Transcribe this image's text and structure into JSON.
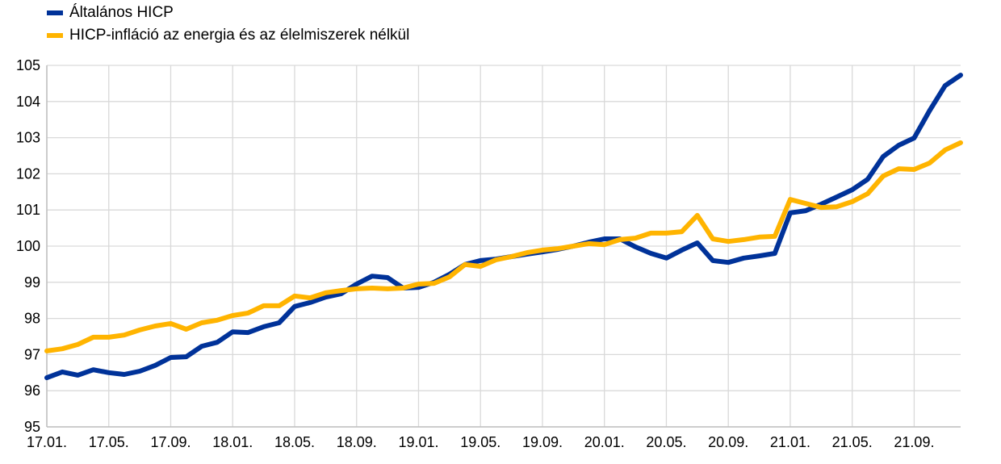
{
  "chart_data": {
    "type": "line",
    "title": "",
    "xlabel": "",
    "ylabel": "",
    "ylim": [
      95,
      105
    ],
    "yticks": [
      95,
      96,
      97,
      98,
      99,
      100,
      101,
      102,
      103,
      104,
      105
    ],
    "grid": true,
    "legend_position": "top-left",
    "x_tick_labels": [
      "17.01.",
      "17.05.",
      "17.09.",
      "18.01.",
      "18.05.",
      "18.09.",
      "19.01.",
      "19.05.",
      "19.09.",
      "20.01.",
      "20.05.",
      "20.09.",
      "21.01.",
      "21.05.",
      "21.09."
    ],
    "x_start": "2017-01",
    "x_end": "2021-12",
    "x_frequency": "monthly",
    "series": [
      {
        "name": "Általános HICP",
        "color": "#003299",
        "values": [
          96.36,
          96.52,
          96.43,
          96.58,
          96.5,
          96.45,
          96.54,
          96.7,
          96.92,
          96.94,
          97.23,
          97.34,
          97.63,
          97.61,
          97.77,
          97.88,
          98.33,
          98.44,
          98.59,
          98.68,
          98.95,
          99.17,
          99.13,
          98.84,
          98.86,
          99.0,
          99.22,
          99.49,
          99.6,
          99.64,
          99.71,
          99.78,
          99.84,
          99.91,
          100.0,
          100.11,
          100.2,
          100.2,
          99.98,
          99.8,
          99.67,
          99.89,
          100.09,
          99.6,
          99.55,
          99.67,
          99.73,
          99.8,
          100.92,
          100.98,
          101.16,
          101.36,
          101.56,
          101.85,
          102.48,
          102.79,
          102.99,
          103.75,
          104.44,
          104.73
        ]
      },
      {
        "name": "HICP-infláció az energia és az élelmiszerek nélkül",
        "color": "#FFB400",
        "values": [
          97.1,
          97.16,
          97.28,
          97.48,
          97.48,
          97.54,
          97.68,
          97.79,
          97.86,
          97.7,
          97.88,
          97.95,
          98.08,
          98.15,
          98.35,
          98.35,
          98.62,
          98.57,
          98.71,
          98.77,
          98.82,
          98.84,
          98.82,
          98.84,
          98.95,
          98.97,
          99.15,
          99.49,
          99.44,
          99.62,
          99.71,
          99.82,
          99.89,
          99.93,
          100.0,
          100.07,
          100.04,
          100.18,
          100.22,
          100.36,
          100.36,
          100.4,
          100.85,
          100.2,
          100.13,
          100.18,
          100.25,
          100.27,
          101.29,
          101.18,
          101.07,
          101.09,
          101.23,
          101.45,
          101.94,
          102.14,
          102.12,
          102.3,
          102.66,
          102.86
        ]
      }
    ]
  }
}
